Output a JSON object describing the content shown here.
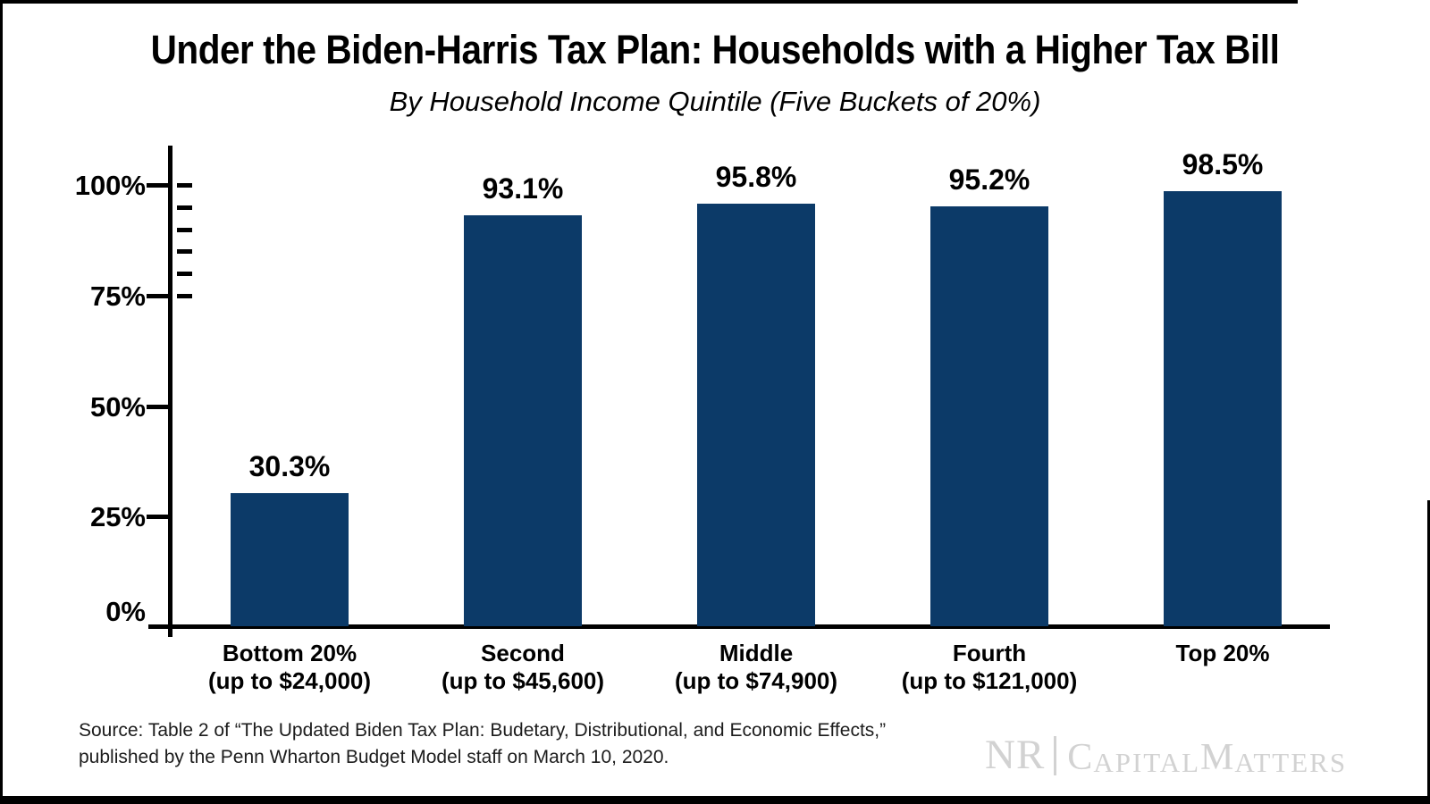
{
  "title": "Under the Biden-Harris Tax Plan: Households with a Higher Tax Bill",
  "subtitle": "By Household Income Quintile (Five Buckets of 20%)",
  "chart_data": {
    "type": "bar",
    "title": "Under the Biden-Harris Tax Plan: Households with a Higher Tax Bill",
    "subtitle": "By Household Income Quintile (Five Buckets of 20%)",
    "categories": [
      "Bottom 20%",
      "Second",
      "Middle",
      "Fourth",
      "Top 20%"
    ],
    "category_sublabels": [
      "(up to $24,000)",
      "(up to $45,600)",
      "(up to $74,900)",
      "(up to $121,000)",
      ""
    ],
    "values": [
      30.3,
      93.1,
      95.8,
      95.2,
      98.5
    ],
    "data_labels": [
      "30.3%",
      "93.1%",
      "95.8%",
      "95.2%",
      "98.5%"
    ],
    "ylim": [
      0,
      100
    ],
    "ytick_values": [
      0,
      25,
      50,
      75,
      100
    ],
    "ytick_labels": [
      "0%",
      "25%",
      "50%",
      "75%",
      "100%"
    ],
    "minor_tick_values": [
      75,
      80,
      85,
      90,
      95,
      100
    ],
    "grid": false,
    "legend": false,
    "bar_color": "#0c3a68",
    "axis_color": "#000000"
  },
  "source": {
    "line1": "Source: Table 2 of “The Updated Biden Tax Plan: Budetary, Distributional, and Economic Effects,”",
    "line2": "published by the Penn Wharton Budget Model staff on March 10, 2020."
  },
  "logo": {
    "full_text": "NR | CapitalMatters",
    "nr": "NR",
    "capital_initial": "C",
    "capital_rest": "APITAL",
    "matters_initial": "M",
    "matters_rest": "ATTERS",
    "color": "#d2d2d2"
  }
}
